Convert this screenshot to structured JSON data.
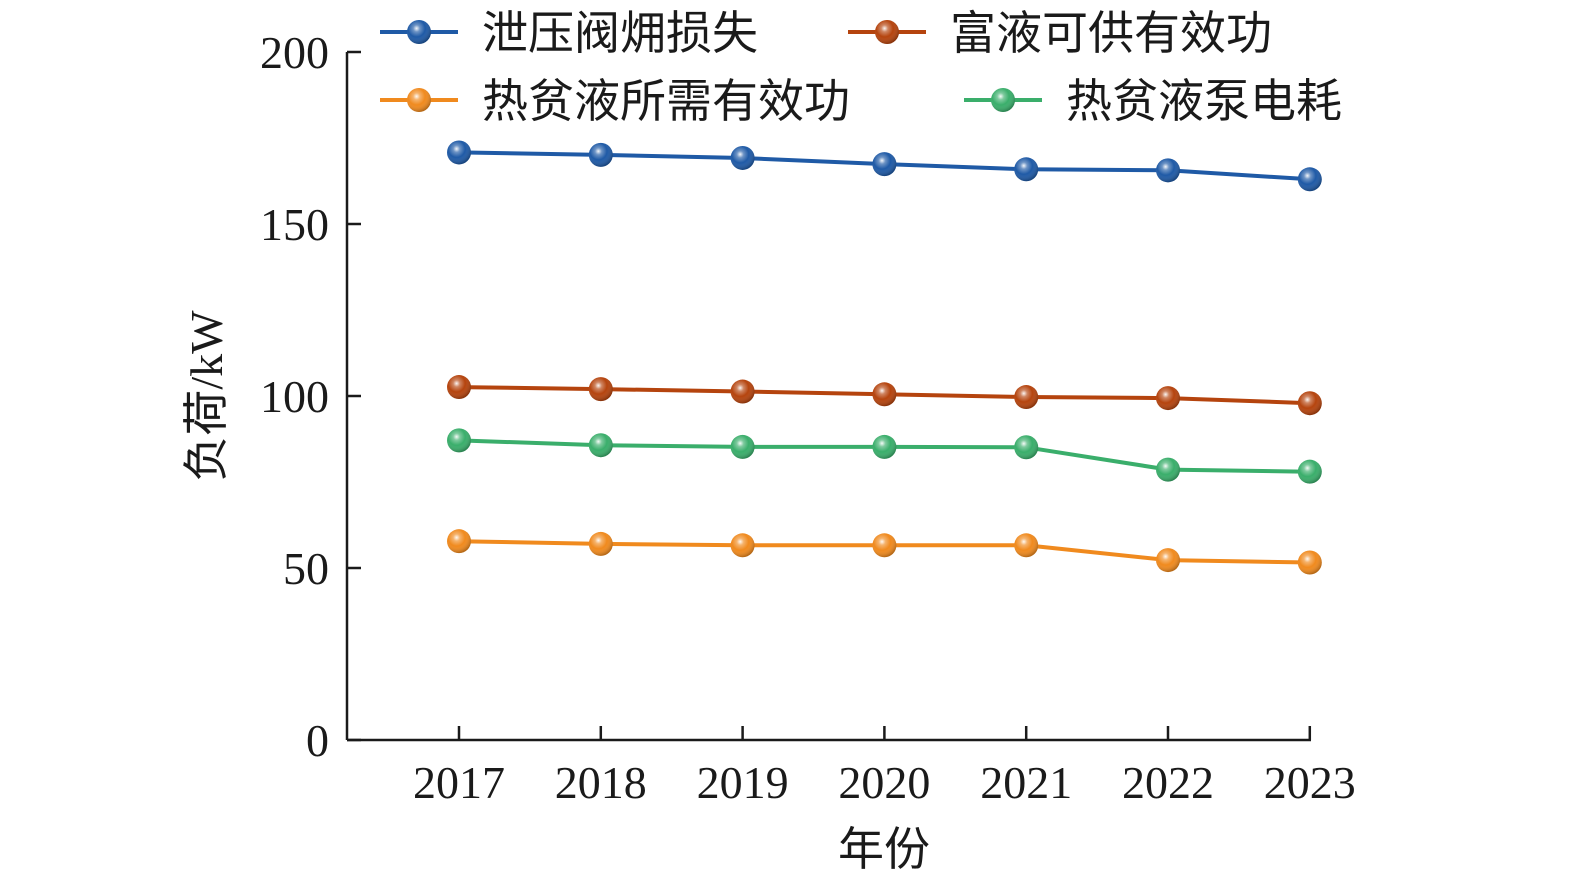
{
  "chart_data": {
    "type": "line",
    "title": "",
    "xlabel": "年份",
    "ylabel": "负荷/kW",
    "categories": [
      "2017",
      "2018",
      "2019",
      "2020",
      "2021",
      "2022",
      "2023"
    ],
    "ylim": [
      0,
      200
    ],
    "yticks": [
      "0",
      "50",
      "100",
      "150",
      "200"
    ],
    "grid": false,
    "legend_placement": "top",
    "series": [
      {
        "name": "泄压阀㶲损失",
        "color": "#1f5aa6",
        "values": [
          170.8,
          170.1,
          169.2,
          167.4,
          165.9,
          165.6,
          163.0
        ]
      },
      {
        "name": "富液可供有效功",
        "color": "#b5440e",
        "values": [
          102.6,
          102.0,
          101.3,
          100.5,
          99.7,
          99.4,
          97.9
        ]
      },
      {
        "name": "热贫液所需有效功",
        "color": "#f08a1e",
        "values": [
          57.8,
          57.0,
          56.6,
          56.6,
          56.6,
          52.3,
          51.6
        ]
      },
      {
        "name": "热贫液泵电耗",
        "color": "#3aae6b",
        "values": [
          87.1,
          85.7,
          85.2,
          85.2,
          85.1,
          78.6,
          78.0
        ]
      }
    ]
  }
}
